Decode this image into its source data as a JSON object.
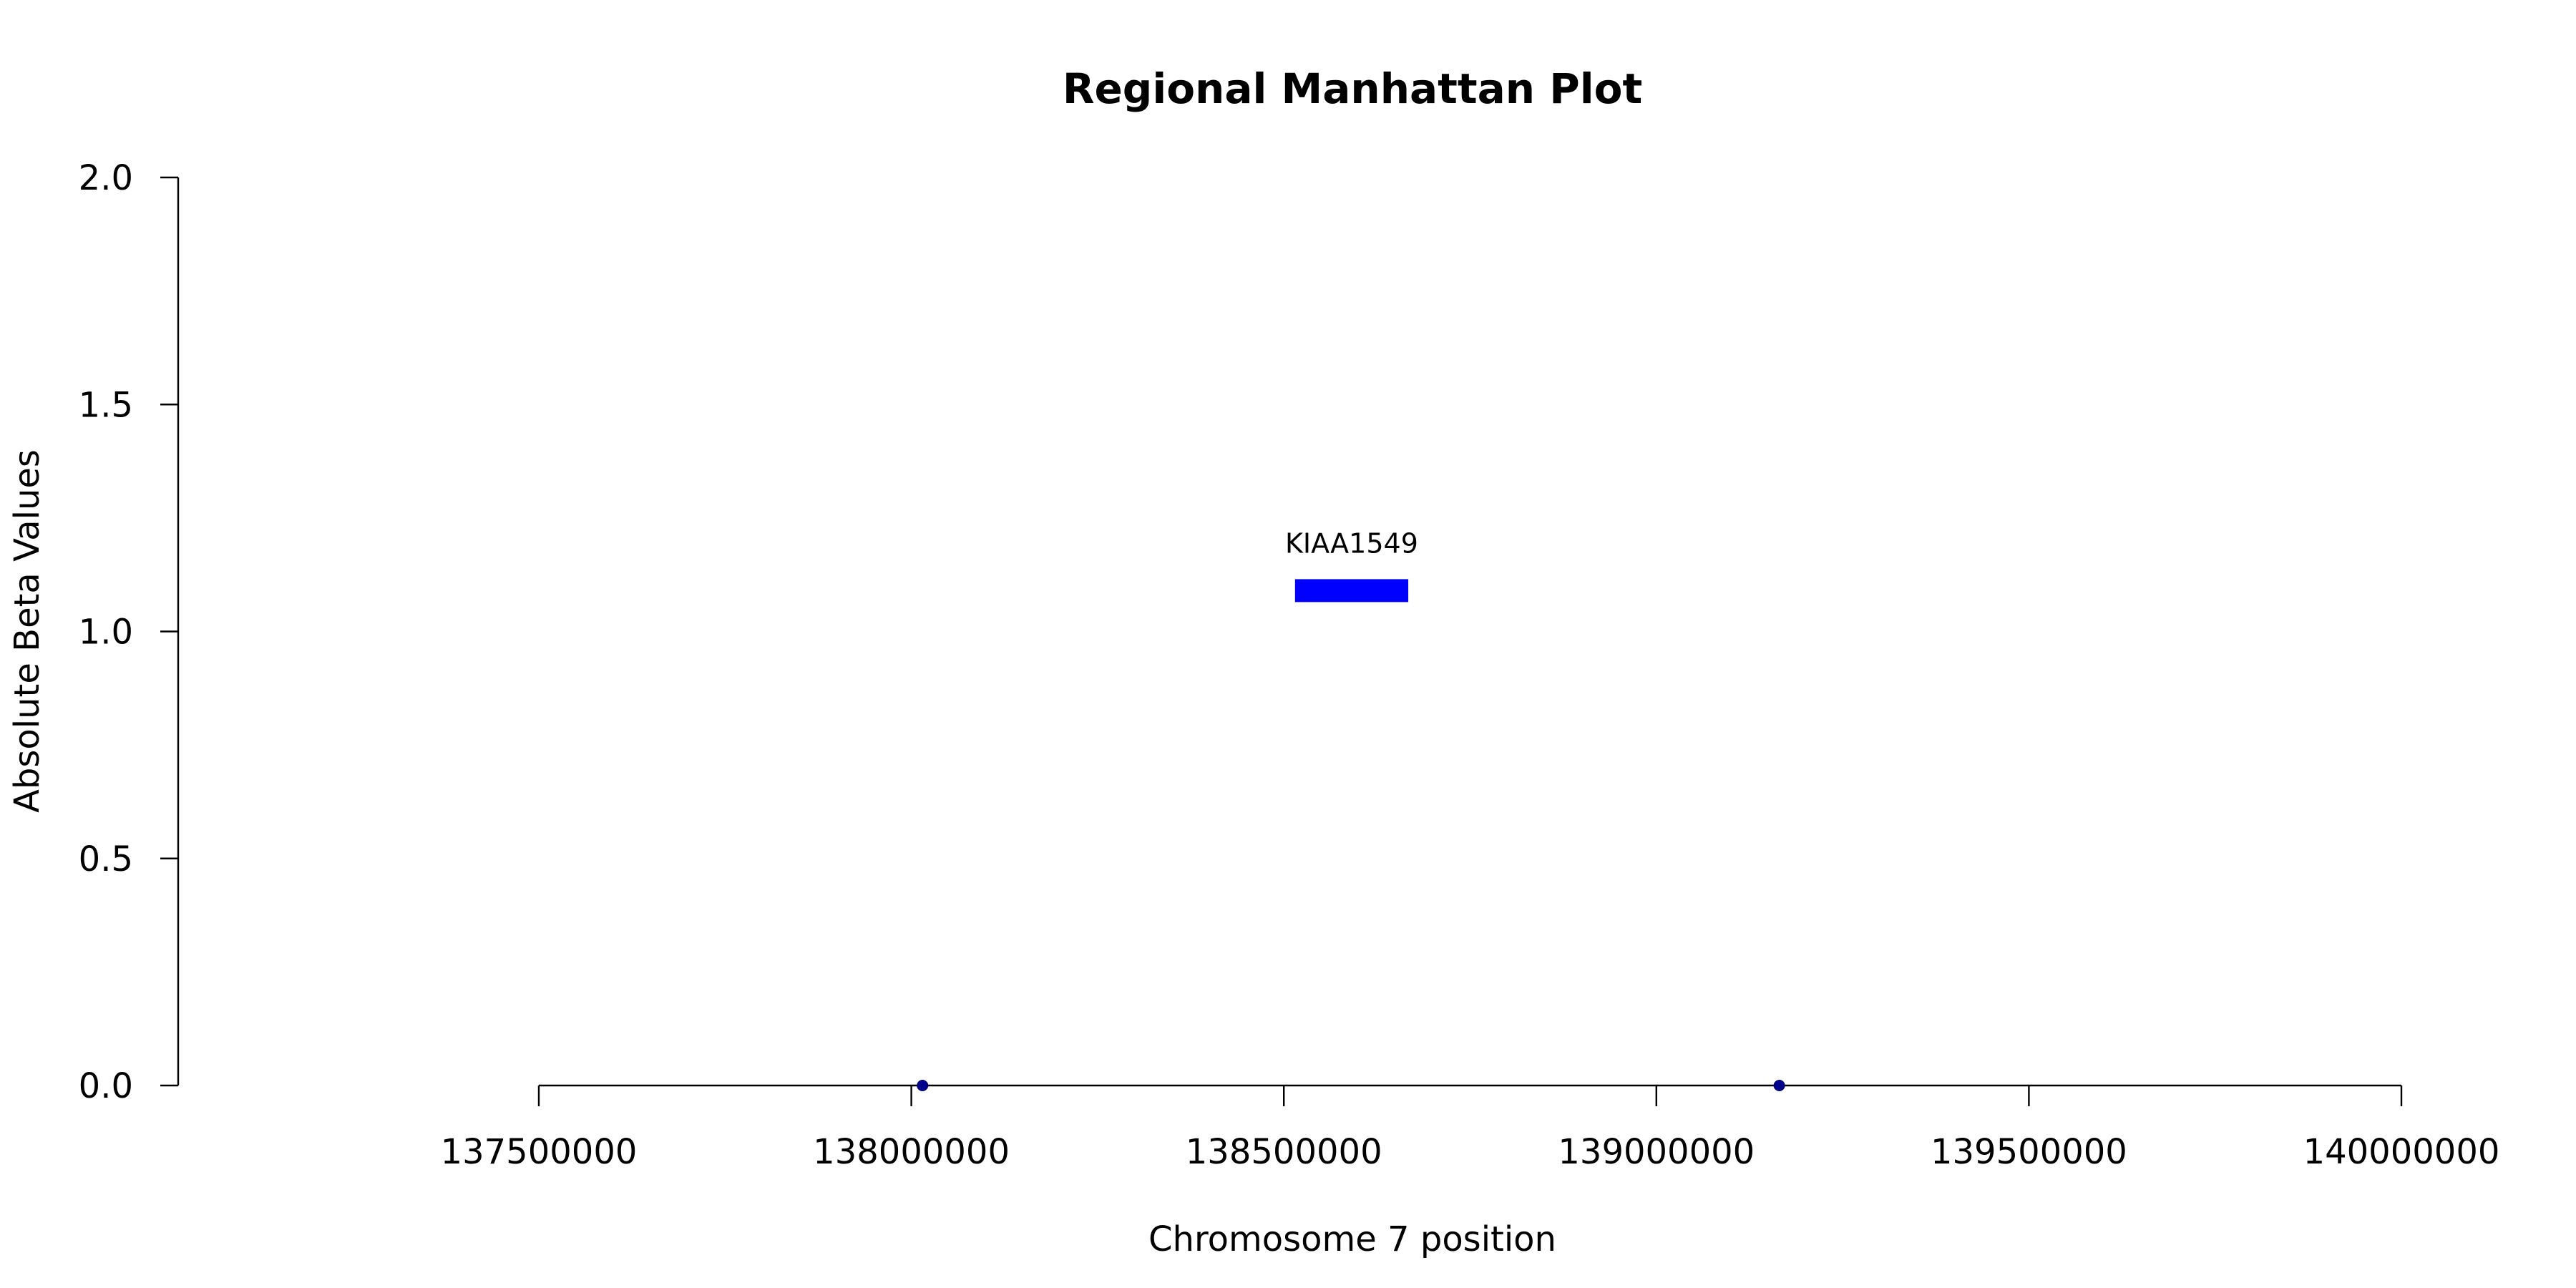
{
  "chart_data": {
    "type": "scatter",
    "title": "Regional Manhattan Plot",
    "xlabel": "Chromosome 7 position",
    "ylabel": "Absolute Beta Values",
    "xlim": [
      137500000,
      140000000
    ],
    "ylim": [
      0,
      2
    ],
    "x_ticks": [
      {
        "value": 137500000,
        "label": "137500000"
      },
      {
        "value": 138000000,
        "label": "138000000"
      },
      {
        "value": 138500000,
        "label": "138500000"
      },
      {
        "value": 139000000,
        "label": "139000000"
      },
      {
        "value": 139500000,
        "label": "139500000"
      },
      {
        "value": 140000000,
        "label": "140000000"
      }
    ],
    "y_ticks": [
      {
        "value": 0.0,
        "label": "0.0"
      },
      {
        "value": 0.5,
        "label": "0.5"
      },
      {
        "value": 1.0,
        "label": "1.0"
      },
      {
        "value": 1.5,
        "label": "1.5"
      },
      {
        "value": 2.0,
        "label": "2.0"
      }
    ],
    "points": [
      {
        "x": 138015000,
        "y": 0.0
      },
      {
        "x": 139165000,
        "y": 0.0
      }
    ],
    "genes": [
      {
        "name": "KIAA1549",
        "start": 138515000,
        "end": 138667000,
        "y": 1.09
      }
    ],
    "colors": {
      "gene": "#0000ff",
      "point": "#00008b",
      "axis": "#000000"
    },
    "grid": false
  }
}
